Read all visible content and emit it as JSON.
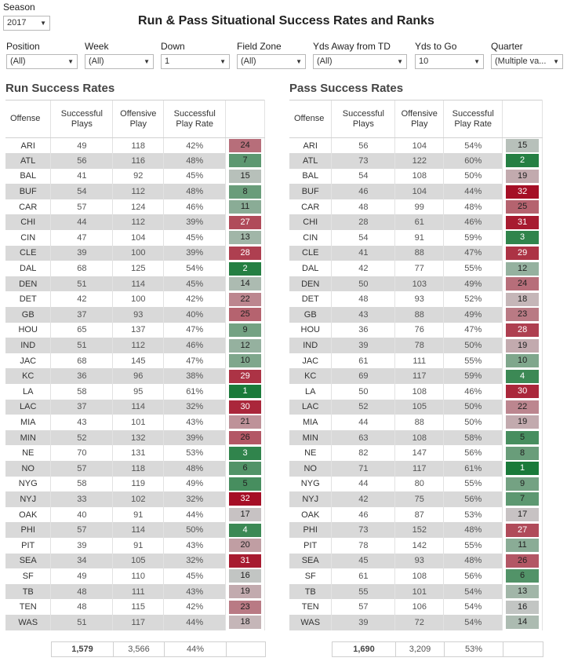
{
  "header": {
    "season_label": "Season",
    "season_value": "2017",
    "title": "Run & Pass Situational Success Rates and Ranks"
  },
  "filters": [
    {
      "label": "Position",
      "value": "(All)"
    },
    {
      "label": "Week",
      "value": "(All)"
    },
    {
      "label": "Down",
      "value": "1"
    },
    {
      "label": "Field Zone",
      "value": "(All)"
    },
    {
      "label": "Yds Away from TD",
      "value": "(All)"
    },
    {
      "label": "Yds to Go",
      "value": "10"
    },
    {
      "label": "Quarter",
      "value": "(Multiple va..."
    }
  ],
  "columns": {
    "offense": "Offense",
    "successful_plays": "Successful Plays",
    "offensive_play": "Offensive Play",
    "success_rate": "Successful Play Rate",
    "rank": ""
  },
  "run": {
    "title": "Run Success Rates",
    "rows": [
      [
        "ARI",
        "49",
        "118",
        "42%",
        "24"
      ],
      [
        "ATL",
        "56",
        "116",
        "48%",
        "7"
      ],
      [
        "BAL",
        "41",
        "92",
        "45%",
        "15"
      ],
      [
        "BUF",
        "54",
        "112",
        "48%",
        "8"
      ],
      [
        "CAR",
        "57",
        "124",
        "46%",
        "11"
      ],
      [
        "CHI",
        "44",
        "112",
        "39%",
        "27"
      ],
      [
        "CIN",
        "47",
        "104",
        "45%",
        "13"
      ],
      [
        "CLE",
        "39",
        "100",
        "39%",
        "28"
      ],
      [
        "DAL",
        "68",
        "125",
        "54%",
        "2"
      ],
      [
        "DEN",
        "51",
        "114",
        "45%",
        "14"
      ],
      [
        "DET",
        "42",
        "100",
        "42%",
        "22"
      ],
      [
        "GB",
        "37",
        "93",
        "40%",
        "25"
      ],
      [
        "HOU",
        "65",
        "137",
        "47%",
        "9"
      ],
      [
        "IND",
        "51",
        "112",
        "46%",
        "12"
      ],
      [
        "JAC",
        "68",
        "145",
        "47%",
        "10"
      ],
      [
        "KC",
        "36",
        "96",
        "38%",
        "29"
      ],
      [
        "LA",
        "58",
        "95",
        "61%",
        "1"
      ],
      [
        "LAC",
        "37",
        "114",
        "32%",
        "30"
      ],
      [
        "MIA",
        "43",
        "101",
        "43%",
        "21"
      ],
      [
        "MIN",
        "52",
        "132",
        "39%",
        "26"
      ],
      [
        "NE",
        "70",
        "131",
        "53%",
        "3"
      ],
      [
        "NO",
        "57",
        "118",
        "48%",
        "6"
      ],
      [
        "NYG",
        "58",
        "119",
        "49%",
        "5"
      ],
      [
        "NYJ",
        "33",
        "102",
        "32%",
        "32"
      ],
      [
        "OAK",
        "40",
        "91",
        "44%",
        "17"
      ],
      [
        "PHI",
        "57",
        "114",
        "50%",
        "4"
      ],
      [
        "PIT",
        "39",
        "91",
        "43%",
        "20"
      ],
      [
        "SEA",
        "34",
        "105",
        "32%",
        "31"
      ],
      [
        "SF",
        "49",
        "110",
        "45%",
        "16"
      ],
      [
        "TB",
        "48",
        "111",
        "43%",
        "19"
      ],
      [
        "TEN",
        "48",
        "115",
        "42%",
        "23"
      ],
      [
        "WAS",
        "51",
        "117",
        "44%",
        "18"
      ]
    ],
    "totals": [
      "1,579",
      "3,566",
      "44%"
    ]
  },
  "pass": {
    "title": "Pass Success Rates",
    "rows": [
      [
        "ARI",
        "56",
        "104",
        "54%",
        "15"
      ],
      [
        "ATL",
        "73",
        "122",
        "60%",
        "2"
      ],
      [
        "BAL",
        "54",
        "108",
        "50%",
        "19"
      ],
      [
        "BUF",
        "46",
        "104",
        "44%",
        "32"
      ],
      [
        "CAR",
        "48",
        "99",
        "48%",
        "25"
      ],
      [
        "CHI",
        "28",
        "61",
        "46%",
        "31"
      ],
      [
        "CIN",
        "54",
        "91",
        "59%",
        "3"
      ],
      [
        "CLE",
        "41",
        "88",
        "47%",
        "29"
      ],
      [
        "DAL",
        "42",
        "77",
        "55%",
        "12"
      ],
      [
        "DEN",
        "50",
        "103",
        "49%",
        "24"
      ],
      [
        "DET",
        "48",
        "93",
        "52%",
        "18"
      ],
      [
        "GB",
        "43",
        "88",
        "49%",
        "23"
      ],
      [
        "HOU",
        "36",
        "76",
        "47%",
        "28"
      ],
      [
        "IND",
        "39",
        "78",
        "50%",
        "19"
      ],
      [
        "JAC",
        "61",
        "111",
        "55%",
        "10"
      ],
      [
        "KC",
        "69",
        "117",
        "59%",
        "4"
      ],
      [
        "LA",
        "50",
        "108",
        "46%",
        "30"
      ],
      [
        "LAC",
        "52",
        "105",
        "50%",
        "22"
      ],
      [
        "MIA",
        "44",
        "88",
        "50%",
        "19"
      ],
      [
        "MIN",
        "63",
        "108",
        "58%",
        "5"
      ],
      [
        "NE",
        "82",
        "147",
        "56%",
        "8"
      ],
      [
        "NO",
        "71",
        "117",
        "61%",
        "1"
      ],
      [
        "NYG",
        "44",
        "80",
        "55%",
        "9"
      ],
      [
        "NYJ",
        "42",
        "75",
        "56%",
        "7"
      ],
      [
        "OAK",
        "46",
        "87",
        "53%",
        "17"
      ],
      [
        "PHI",
        "73",
        "152",
        "48%",
        "27"
      ],
      [
        "PIT",
        "78",
        "142",
        "55%",
        "11"
      ],
      [
        "SEA",
        "45",
        "93",
        "48%",
        "26"
      ],
      [
        "SF",
        "61",
        "108",
        "56%",
        "6"
      ],
      [
        "TB",
        "55",
        "101",
        "54%",
        "13"
      ],
      [
        "TEN",
        "57",
        "106",
        "54%",
        "16"
      ],
      [
        "WAS",
        "39",
        "72",
        "54%",
        "14"
      ]
    ],
    "totals": [
      "1,690",
      "3,209",
      "53%"
    ]
  },
  "colors": {
    "best": "#1a7a3a",
    "mid": "#c8c8c8",
    "worst": "#a50f26"
  }
}
